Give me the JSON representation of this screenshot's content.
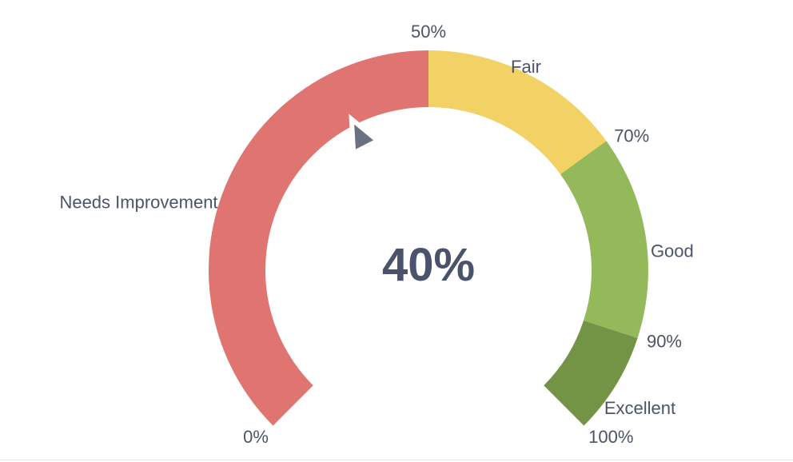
{
  "chart_data": {
    "type": "gauge",
    "value": 40,
    "value_label": "40%",
    "min": 0,
    "max": 100,
    "bands": [
      {
        "name": "Needs Improvement",
        "from": 0,
        "to": 50,
        "color": "#e07470"
      },
      {
        "name": "Fair",
        "from": 50,
        "to": 70,
        "color": "#f2d165"
      },
      {
        "name": "Good",
        "from": 70,
        "to": 90,
        "color": "#93b95b"
      },
      {
        "name": "Excellent",
        "from": 90,
        "to": 100,
        "color": "#729444"
      }
    ],
    "tick_labels": [
      {
        "label": "0%",
        "value": 0
      },
      {
        "label": "50%",
        "value": 50
      },
      {
        "label": "70%",
        "value": 70
      },
      {
        "label": "90%",
        "value": 90
      },
      {
        "label": "100%",
        "value": 100
      }
    ],
    "pointer_color": "#6b7180"
  }
}
